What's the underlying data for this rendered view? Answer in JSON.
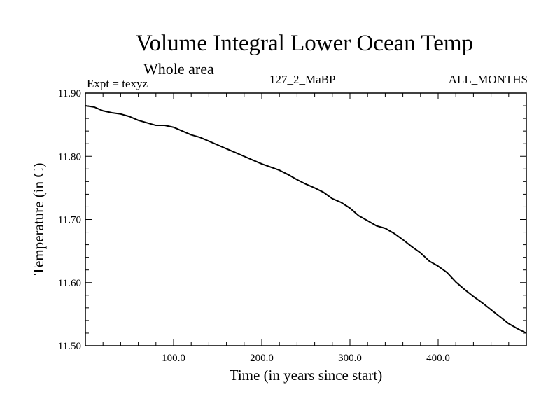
{
  "header": {
    "title": "Volume Integral Lower Ocean Temp",
    "subtitle": "Whole area",
    "experiment": "Expt = texyz",
    "run_label": "127_2_MaBP",
    "months_label": "ALL_MONTHS"
  },
  "chart_data": {
    "type": "line",
    "xlabel": "Time (in years since start)",
    "ylabel": "Temperature (in C)",
    "xlim": [
      0,
      500
    ],
    "ylim": [
      11.5,
      11.9
    ],
    "x_ticks": [
      {
        "value": 100,
        "label": "100.0"
      },
      {
        "value": 200,
        "label": "200.0"
      },
      {
        "value": 300,
        "label": "300.0"
      },
      {
        "value": 400,
        "label": "400.0"
      }
    ],
    "y_ticks": [
      {
        "value": 11.5,
        "label": "11.50"
      },
      {
        "value": 11.6,
        "label": "11.60"
      },
      {
        "value": 11.7,
        "label": "11.70"
      },
      {
        "value": 11.8,
        "label": "11.80"
      },
      {
        "value": 11.9,
        "label": "11.90"
      }
    ],
    "grid": false,
    "series": [
      {
        "x": [
          0,
          10,
          20,
          30,
          40,
          50,
          60,
          70,
          80,
          90,
          100,
          110,
          120,
          130,
          140,
          150,
          160,
          170,
          180,
          190,
          200,
          210,
          220,
          230,
          240,
          250,
          260,
          270,
          280,
          290,
          300,
          310,
          320,
          330,
          340,
          350,
          360,
          370,
          380,
          390,
          400,
          410,
          420,
          430,
          440,
          450,
          460,
          470,
          480,
          490,
          500
        ],
        "y": [
          11.88,
          11.878,
          11.872,
          11.869,
          11.867,
          11.863,
          11.857,
          11.853,
          11.849,
          11.849,
          11.846,
          11.84,
          11.834,
          11.83,
          11.824,
          11.818,
          11.812,
          11.806,
          11.8,
          11.794,
          11.788,
          11.783,
          11.778,
          11.771,
          11.763,
          11.756,
          11.75,
          11.743,
          11.733,
          11.727,
          11.718,
          11.706,
          11.698,
          11.69,
          11.686,
          11.678,
          11.668,
          11.657,
          11.647,
          11.634,
          11.626,
          11.616,
          11.601,
          11.589,
          11.578,
          11.568,
          11.557,
          11.546,
          11.535,
          11.527,
          11.52
        ]
      }
    ]
  }
}
